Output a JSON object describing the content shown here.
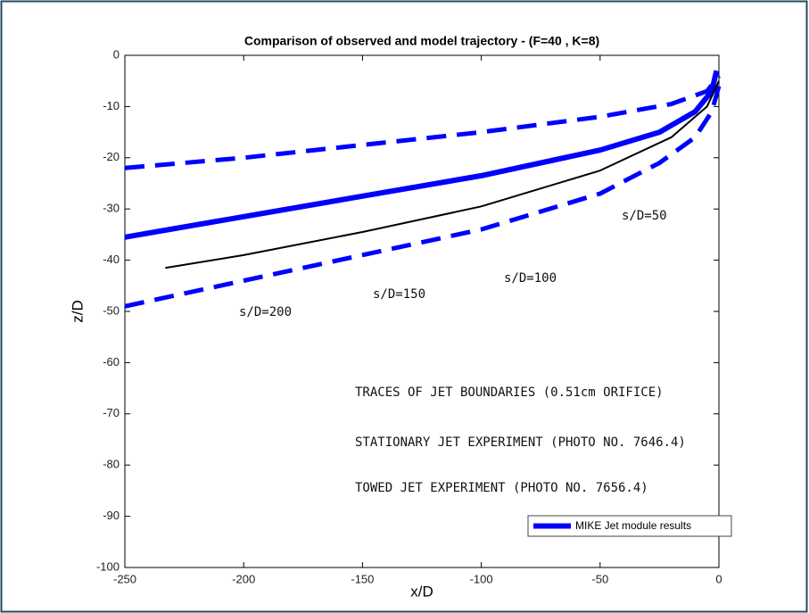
{
  "chart_data": {
    "type": "line",
    "title": "Comparison of observed and model trajectory - (F=40 , K=8)",
    "x_label": "x/D",
    "y_label": "z/D",
    "xlim": [
      -250,
      0
    ],
    "ylim": [
      -100,
      0
    ],
    "xticks": [
      -250,
      -200,
      -150,
      -100,
      -50,
      0
    ],
    "yticks": [
      -100,
      -90,
      -80,
      -70,
      -60,
      -50,
      -40,
      -30,
      -20,
      -10,
      0
    ],
    "legend": "lower right",
    "series": [
      {
        "name": "MIKE Jet module results",
        "color": "#0000ff",
        "line_style": "solid",
        "x": [
          -250,
          -200,
          -150,
          -100,
          -50,
          -25,
          -10,
          -3,
          -1
        ],
        "values": [
          -35.5,
          -31.5,
          -27.5,
          -23.5,
          -18.5,
          -15,
          -11,
          -7,
          -3
        ]
      },
      {
        "color": "#0000ff",
        "line_style": "dashed",
        "x": [
          -250,
          -200,
          -150,
          -100,
          -50,
          -20,
          -5,
          0
        ],
        "values": [
          -22,
          -20,
          -17.5,
          -15,
          -12,
          -9.5,
          -7,
          -4
        ]
      },
      {
        "color": "#0000ff",
        "line_style": "dashed",
        "x": [
          -250,
          -200,
          -150,
          -100,
          -50,
          -25,
          -10,
          -3,
          0
        ],
        "values": [
          -49,
          -44,
          -39,
          -34,
          -27,
          -21,
          -16,
          -11,
          -6
        ]
      },
      {
        "color": "#000000",
        "line_style": "thin",
        "x": [
          -233,
          -200,
          -150,
          -100,
          -50,
          -20,
          -5,
          0
        ],
        "values": [
          -41.5,
          -39,
          -34.5,
          -29.5,
          -22.5,
          -16,
          -10,
          -5
        ]
      }
    ],
    "annotations": [
      "TRACES OF JET BOUNDARIES (0.51cm ORIFICE)",
      "STATIONARY JET EXPERIMENT (PHOTO NO. 7646.4)",
      "TOWED JET EXPERIMENT (PHOTO NO. 7656.4)",
      "s/D=200",
      "s/D=150",
      "s/D=100",
      "s/D=50"
    ]
  }
}
